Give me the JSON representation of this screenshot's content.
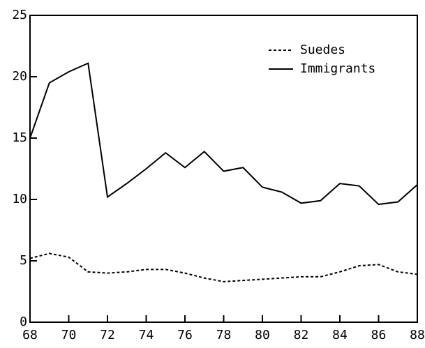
{
  "chart_data": {
    "type": "line",
    "x": [
      68,
      69,
      70,
      71,
      72,
      73,
      74,
      75,
      76,
      77,
      78,
      79,
      80,
      81,
      82,
      83,
      84,
      85,
      86,
      87,
      88
    ],
    "series": [
      {
        "name": "Suedes",
        "color": "#000000",
        "dash": "dashed",
        "values": [
          5.2,
          5.6,
          5.3,
          4.1,
          4.0,
          4.1,
          4.3,
          4.3,
          4.0,
          3.6,
          3.3,
          3.4,
          3.5,
          3.6,
          3.7,
          3.7,
          4.1,
          4.6,
          4.7,
          4.1,
          3.9
        ]
      },
      {
        "name": "Immigrants",
        "color": "#000000",
        "dash": "solid",
        "values": [
          15.0,
          19.5,
          20.4,
          21.1,
          10.2,
          11.3,
          12.5,
          13.8,
          12.6,
          13.9,
          12.3,
          12.6,
          11.0,
          10.6,
          9.7,
          9.9,
          11.3,
          11.1,
          9.6,
          9.8,
          11.2
        ]
      }
    ],
    "xlim": [
      68,
      88
    ],
    "xticks": [
      68,
      70,
      72,
      74,
      76,
      78,
      80,
      82,
      84,
      86,
      88
    ],
    "ylim": [
      0,
      25
    ],
    "yticks": [
      0,
      5,
      10,
      15,
      20,
      25
    ],
    "grid": false,
    "legend": "upper-right"
  }
}
